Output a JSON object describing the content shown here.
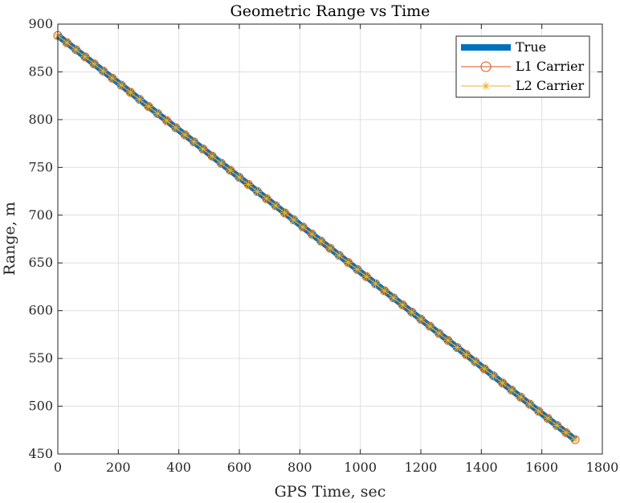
{
  "chart_data": {
    "type": "line",
    "title": "Geometric Range vs Time",
    "xlabel": "GPS Time, sec",
    "ylabel": "Range, m",
    "xlim": [
      0,
      1800
    ],
    "ylim": [
      450,
      900
    ],
    "xticks": [
      0,
      200,
      400,
      600,
      800,
      1000,
      1200,
      1400,
      1600,
      1800
    ],
    "yticks": [
      450,
      500,
      550,
      600,
      650,
      700,
      750,
      800,
      850,
      900
    ],
    "grid": true,
    "legend_position": "top-right",
    "x_start": 0,
    "x_end": 1710,
    "marker_interval": 30,
    "series": [
      {
        "name": "True",
        "color": "#0072BD",
        "style": "thick-line",
        "x": [
          0,
          1710
        ],
        "y": [
          888,
          465
        ]
      },
      {
        "name": "L1 Carrier",
        "color": "#D95319",
        "style": "line-circle",
        "x": [
          0,
          1710
        ],
        "y": [
          888,
          465
        ]
      },
      {
        "name": "L2 Carrier",
        "color": "#EDB120",
        "style": "line-asterisk",
        "x": [
          0,
          1710
        ],
        "y": [
          888,
          465
        ]
      }
    ]
  }
}
